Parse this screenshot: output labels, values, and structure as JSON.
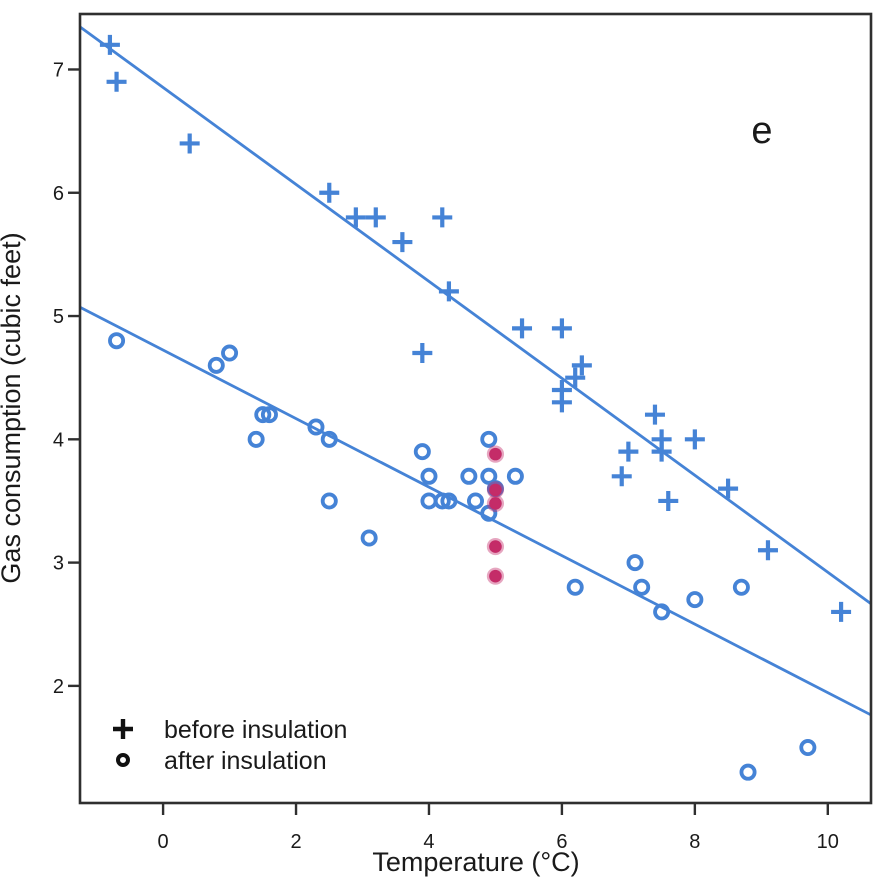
{
  "figure": {
    "panel_label": "e",
    "xlabel": "Temperature (°C)",
    "ylabel": "Gas consumption (cubic feet)",
    "legend": [
      {
        "symbol": "plus-icon",
        "label": "before insulation"
      },
      {
        "symbol": "open-circle-icon",
        "label": "after insulation"
      }
    ]
  },
  "colors": {
    "series_blue": "#4583d6",
    "highlight_red": "#c42c68",
    "highlight_red_halo": "rgba(196,44,104,0.42)",
    "axis": "#2f2f2f",
    "text": "#1a1a1a"
  },
  "chart_data": {
    "type": "scatter",
    "title": "",
    "panel_label": "e",
    "xlabel": "Temperature (°C)",
    "ylabel": "Gas consumption (cubic feet)",
    "xlim": [
      -1.25,
      10.65
    ],
    "ylim": [
      1.05,
      7.45
    ],
    "x_ticks": [
      0,
      2,
      4,
      6,
      8,
      10
    ],
    "y_ticks": [
      2,
      3,
      4,
      5,
      6,
      7
    ],
    "grid": false,
    "legend_position": "inside bottom-left",
    "series": [
      {
        "name": "before insulation",
        "marker": "plus",
        "color": "#4583d6",
        "points": [
          [
            -0.8,
            7.2
          ],
          [
            -0.7,
            6.9
          ],
          [
            0.4,
            6.4
          ],
          [
            2.5,
            6.0
          ],
          [
            2.9,
            5.8
          ],
          [
            3.2,
            5.8
          ],
          [
            3.6,
            5.6
          ],
          [
            3.9,
            4.7
          ],
          [
            4.2,
            5.8
          ],
          [
            4.3,
            5.2
          ],
          [
            5.4,
            4.9
          ],
          [
            6.0,
            4.9
          ],
          [
            6.0,
            4.3
          ],
          [
            6.0,
            4.4
          ],
          [
            6.2,
            4.5
          ],
          [
            6.3,
            4.6
          ],
          [
            6.9,
            3.7
          ],
          [
            7.0,
            3.9
          ],
          [
            7.4,
            4.2
          ],
          [
            7.5,
            4.0
          ],
          [
            7.5,
            3.9
          ],
          [
            7.6,
            3.5
          ],
          [
            8.0,
            4.0
          ],
          [
            8.5,
            3.6
          ],
          [
            9.1,
            3.1
          ],
          [
            10.2,
            2.6
          ]
        ]
      },
      {
        "name": "after insulation",
        "marker": "open-circle",
        "color": "#4583d6",
        "points": [
          [
            -0.7,
            4.8
          ],
          [
            0.8,
            4.6
          ],
          [
            1.0,
            4.7
          ],
          [
            1.4,
            4.0
          ],
          [
            1.5,
            4.2
          ],
          [
            1.6,
            4.2
          ],
          [
            2.3,
            4.1
          ],
          [
            2.5,
            4.0
          ],
          [
            2.5,
            3.5
          ],
          [
            3.1,
            3.2
          ],
          [
            3.9,
            3.9
          ],
          [
            4.0,
            3.5
          ],
          [
            4.0,
            3.7
          ],
          [
            4.2,
            3.5
          ],
          [
            4.3,
            3.5
          ],
          [
            4.6,
            3.7
          ],
          [
            4.7,
            3.5
          ],
          [
            4.9,
            3.4
          ],
          [
            4.9,
            3.7
          ],
          [
            4.9,
            4.0
          ],
          [
            5.0,
            3.6
          ],
          [
            5.3,
            3.7
          ],
          [
            6.2,
            2.8
          ],
          [
            7.1,
            3.0
          ],
          [
            7.2,
            2.8
          ],
          [
            7.5,
            2.6
          ],
          [
            8.0,
            2.7
          ],
          [
            8.7,
            2.8
          ],
          [
            8.8,
            1.3
          ],
          [
            9.7,
            1.5
          ]
        ]
      },
      {
        "name": "highlighted points at 5 °C",
        "marker": "filled-circle",
        "color": "#c42c68",
        "points": [
          [
            5.0,
            3.88
          ],
          [
            5.0,
            3.59
          ],
          [
            5.0,
            3.48
          ],
          [
            5.0,
            3.13
          ],
          [
            5.0,
            2.89
          ]
        ]
      }
    ],
    "fit_lines": [
      {
        "name": "before insulation fit",
        "color": "#4583d6",
        "intercept": 6.854,
        "slope": -0.3932
      },
      {
        "name": "after insulation fit",
        "color": "#4583d6",
        "intercept": 4.724,
        "slope": -0.2779
      }
    ]
  }
}
